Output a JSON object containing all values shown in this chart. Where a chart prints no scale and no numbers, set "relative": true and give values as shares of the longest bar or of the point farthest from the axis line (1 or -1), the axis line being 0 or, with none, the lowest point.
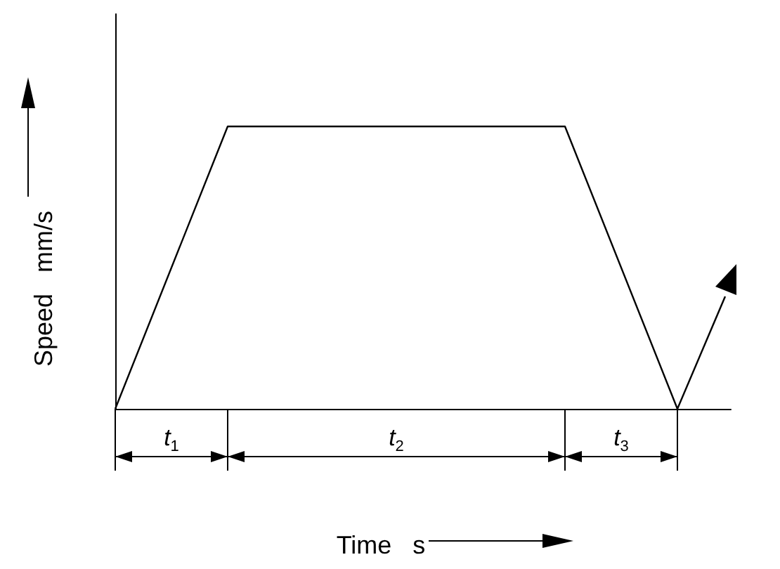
{
  "chart_data": {
    "type": "line",
    "relative": true,
    "categories": [
      null,
      null,
      null,
      null,
      null,
      null
    ],
    "values": [
      0,
      1,
      1,
      1,
      1,
      0
    ],
    "color": "#000000",
    "xlabel": "Time   s",
    "ylabel": "Speed   mm/s",
    "annotations": [
      "t$_{1}$",
      "t$_{2}$",
      "t$_{3}$"
    ],
    "grid": false,
    "marker": "none",
    "line_style": "solid",
    "tick_labels": false
  }
}
